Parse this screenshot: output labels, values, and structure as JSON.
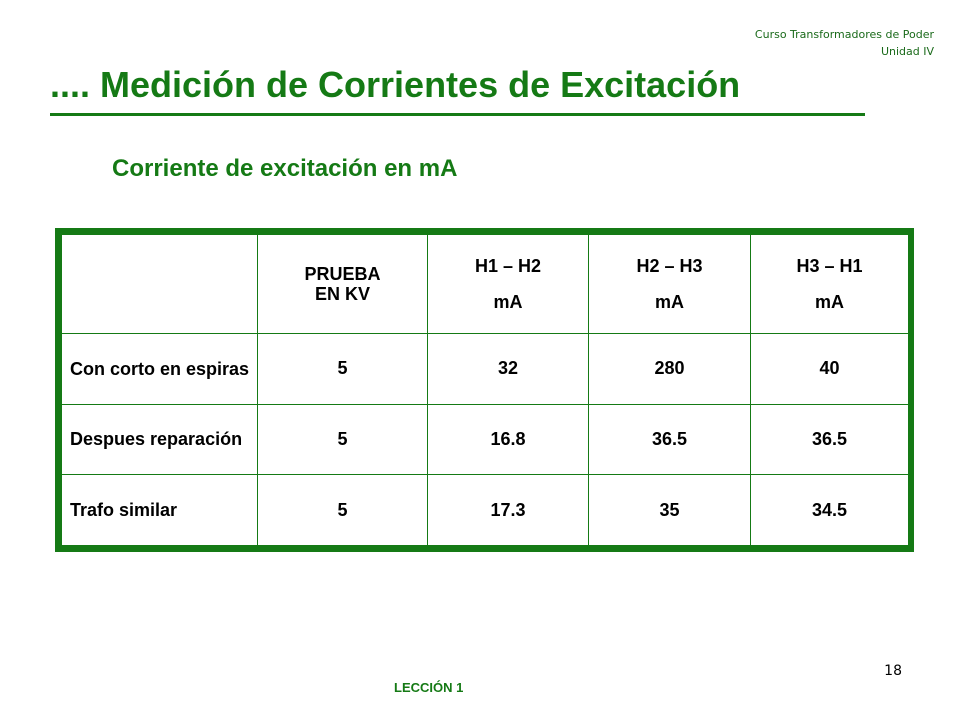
{
  "header": {
    "course_line1": "Curso Transformadores de Poder",
    "course_line2": "Unidad IV"
  },
  "title": ".... Medición de Corrientes de Excitación",
  "subtitle": "Corriente de excitación en mA",
  "table": {
    "headers": [
      {
        "line1": "",
        "line2": ""
      },
      {
        "line1": "PRUEBA",
        "line2": "EN KV"
      },
      {
        "line1": "H1 – H2",
        "line2": "mA"
      },
      {
        "line1": "H2 – H3",
        "line2": "mA"
      },
      {
        "line1": "H3 – H1",
        "line2": "mA"
      }
    ],
    "rows": [
      {
        "label": "Con corto en espiras",
        "kv": "5",
        "h1h2": "32",
        "h2h3": "280",
        "h3h1": "40"
      },
      {
        "label": "Despues reparación",
        "kv": "5",
        "h1h2": "16.8",
        "h2h3": "36.5",
        "h3h1": "36.5"
      },
      {
        "label": "Trafo similar",
        "kv": "5",
        "h1h2": "17.3",
        "h2h3": "35",
        "h3h1": "34.5"
      }
    ]
  },
  "footer": {
    "lesson": "LECCIÓN 1",
    "page_number": "18"
  },
  "colors": {
    "accent_green": "#157a15"
  }
}
